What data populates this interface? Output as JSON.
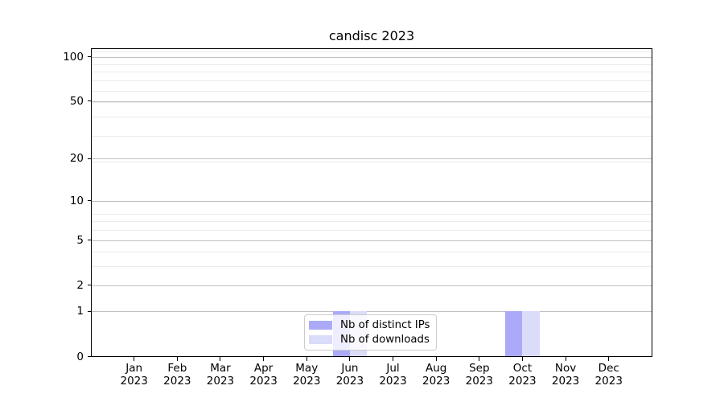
{
  "chart_data": {
    "type": "bar",
    "title": "candisc 2023",
    "categories": [
      "Jan 2023",
      "Feb 2023",
      "Mar 2023",
      "Apr 2023",
      "May 2023",
      "Jun 2023",
      "Jul 2023",
      "Aug 2023",
      "Sep 2023",
      "Oct 2023",
      "Nov 2023",
      "Dec 2023"
    ],
    "series": [
      {
        "name": "Nb of distinct IPs",
        "color": "#aaaaf8",
        "values": [
          0,
          0,
          0,
          0,
          0,
          1,
          0,
          0,
          0,
          1,
          0,
          0
        ]
      },
      {
        "name": "Nb of downloads",
        "color": "#dbdbfa",
        "values": [
          0,
          0,
          0,
          0,
          0,
          1,
          0,
          0,
          0,
          1,
          0,
          0
        ]
      }
    ],
    "y_ticks": [
      0,
      1,
      2,
      5,
      10,
      20,
      50,
      100
    ],
    "y_minor_ticks": [
      3,
      4,
      6,
      7,
      8,
      19,
      29,
      39,
      49,
      59,
      69,
      79,
      89,
      109
    ],
    "y_scale": "log1p",
    "ylim": [
      0,
      113
    ],
    "xlabel": "",
    "ylabel": "",
    "grid": "both",
    "legend_position": "lower center",
    "colors": {
      "grid_major": "#c0c0c0",
      "grid_minor": "#eaeaea",
      "spine": "#000000",
      "text": "#000000",
      "legend_border": "#cccccc",
      "background": "#ffffff"
    }
  }
}
